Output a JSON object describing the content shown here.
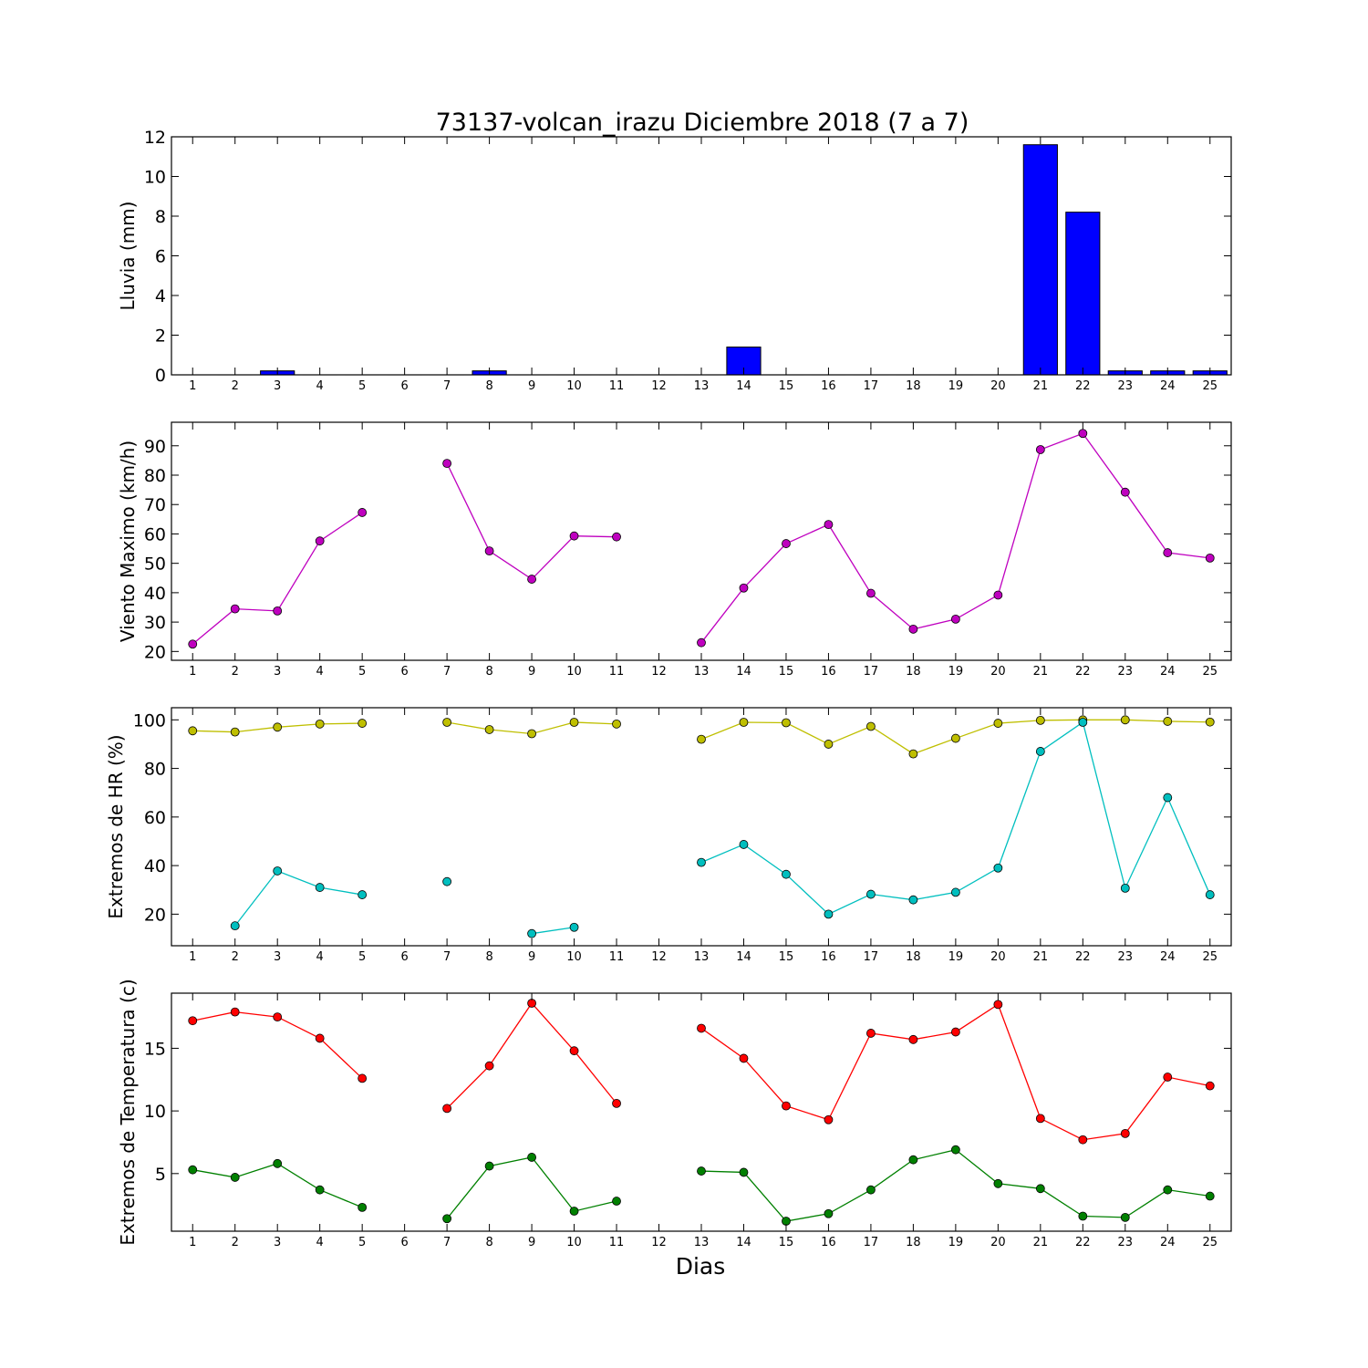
{
  "title": "73137-volcan_irazu Diciembre 2018  (7 a 7)",
  "xlabel": "Dias",
  "chart_data": [
    {
      "type": "bar",
      "ylabel": "Lluvia (mm)",
      "x": [
        1,
        2,
        3,
        4,
        5,
        6,
        7,
        8,
        9,
        10,
        11,
        12,
        13,
        14,
        15,
        16,
        17,
        18,
        19,
        20,
        21,
        22,
        23,
        24,
        25
      ],
      "values": [
        0,
        0,
        0.2,
        0,
        0,
        0,
        0,
        0.2,
        0,
        0,
        0,
        0,
        0,
        1.4,
        0,
        0,
        0,
        0,
        0,
        0,
        11.6,
        8.2,
        0.2,
        0.2,
        0.2
      ],
      "ylim": [
        0,
        12
      ],
      "yticks": [
        0,
        2,
        4,
        6,
        8,
        10,
        12
      ],
      "color": "#0000ff"
    },
    {
      "type": "line",
      "ylabel": "Viento Maximo (km/h)",
      "x": [
        1,
        2,
        3,
        4,
        5,
        6,
        7,
        8,
        9,
        10,
        11,
        12,
        13,
        14,
        15,
        16,
        17,
        18,
        19,
        20,
        21,
        22,
        23,
        24,
        25
      ],
      "series": [
        {
          "color": "#bf00bf",
          "values": [
            22.5,
            34.5,
            33.8,
            57.6,
            67.3,
            null,
            84,
            54.2,
            44.6,
            59.3,
            59,
            null,
            23,
            41.6,
            56.7,
            63.2,
            39.8,
            27.6,
            31,
            39.2,
            88.7,
            94.2,
            74.2,
            53.6,
            51.8
          ]
        }
      ],
      "ylim": [
        17,
        98
      ],
      "yticks": [
        20,
        30,
        40,
        50,
        60,
        70,
        80,
        90
      ]
    },
    {
      "type": "line",
      "ylabel": "Extremos de HR (%)",
      "x": [
        1,
        2,
        3,
        4,
        5,
        6,
        7,
        8,
        9,
        10,
        11,
        12,
        13,
        14,
        15,
        16,
        17,
        18,
        19,
        20,
        21,
        22,
        23,
        24,
        25
      ],
      "series": [
        {
          "color": "#bfbf00",
          "values": [
            95.5,
            95,
            97,
            98.3,
            98.6,
            null,
            99,
            96,
            94.3,
            99,
            98.3,
            null,
            92,
            99,
            98.8,
            90,
            97.3,
            86,
            92.4,
            98.6,
            99.8,
            100,
            100,
            99.4,
            99.1
          ]
        },
        {
          "color": "#00bfbf",
          "values": [
            null,
            15.2,
            37.8,
            31,
            28,
            null,
            33.4,
            null,
            12,
            14.6,
            null,
            null,
            41.3,
            48.7,
            36.4,
            20,
            28.2,
            25.9,
            29,
            39,
            87,
            99,
            30.7,
            68,
            28
          ]
        }
      ],
      "ylim": [
        7,
        105
      ],
      "yticks": [
        20,
        40,
        60,
        80,
        100
      ]
    },
    {
      "type": "line",
      "ylabel": "Extremos de Temperatura (c)",
      "x": [
        1,
        2,
        3,
        4,
        5,
        6,
        7,
        8,
        9,
        10,
        11,
        12,
        13,
        14,
        15,
        16,
        17,
        18,
        19,
        20,
        21,
        22,
        23,
        24,
        25
      ],
      "series": [
        {
          "color": "#ff0000",
          "values": [
            17.2,
            17.9,
            17.5,
            15.8,
            12.6,
            null,
            10.2,
            13.6,
            18.6,
            14.8,
            10.6,
            null,
            16.6,
            14.2,
            10.4,
            9.3,
            16.2,
            15.7,
            16.3,
            18.5,
            9.4,
            7.7,
            8.2,
            12.7,
            12
          ]
        },
        {
          "color": "#008000",
          "values": [
            5.3,
            4.7,
            5.8,
            3.7,
            2.3,
            null,
            1.4,
            5.6,
            6.3,
            2,
            2.8,
            null,
            5.2,
            5.1,
            1.2,
            1.8,
            3.7,
            6.1,
            6.9,
            4.2,
            3.8,
            1.6,
            1.5,
            3.7,
            3.2
          ]
        }
      ],
      "ylim": [
        0.4,
        19.4
      ],
      "yticks": [
        5,
        10,
        15
      ]
    }
  ]
}
